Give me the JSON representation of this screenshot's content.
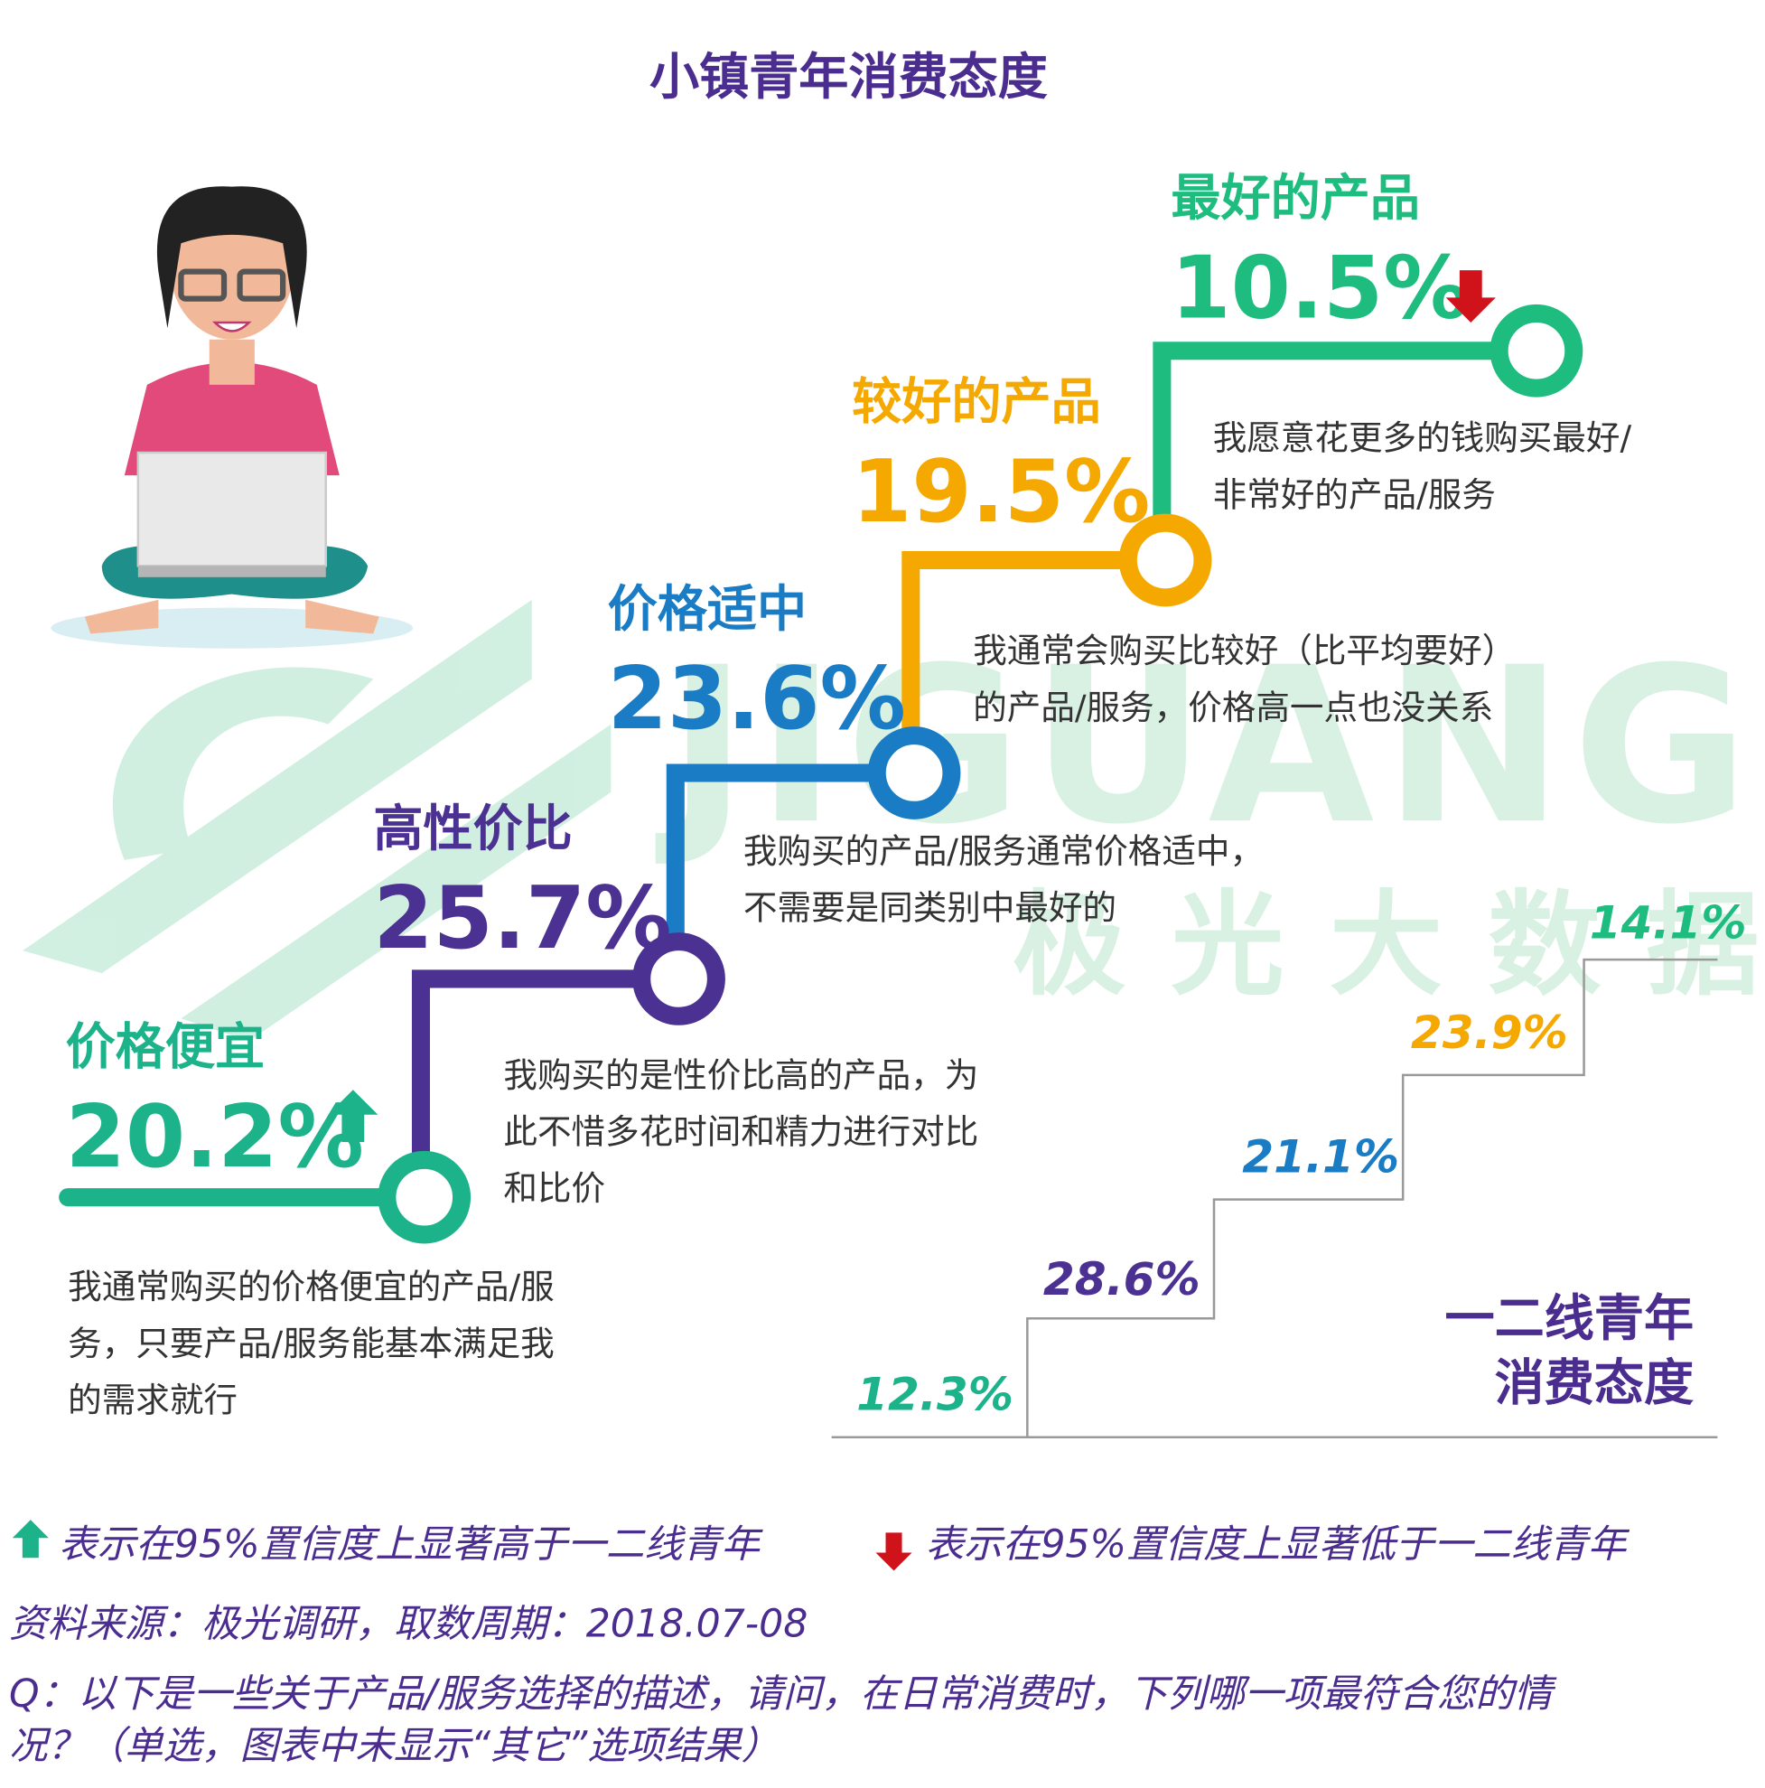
{
  "title": "小镇青年消费态度",
  "steps": [
    {
      "label": "价格便宜",
      "value": "20.2%",
      "description": [
        "我通常购买的价格便宜的产品/服",
        "务，只要产品/服务能基本满足我",
        "的需求就行"
      ]
    },
    {
      "label": "高性价比",
      "value": "25.7%",
      "description": [
        "我购买的是性价比高的产品，为",
        "此不惜多花时间和精力进行对比",
        "和比价"
      ]
    },
    {
      "label": "价格适中",
      "value": "23.6%",
      "description": [
        "我购买的产品/服务通常价格适中，",
        "不需要是同类别中最好的"
      ]
    },
    {
      "label": "较好的产品",
      "value": "19.5%",
      "description": [
        "我通常会购买比较好（比平均要好）",
        "的产品/服务，价格高一点也没关系"
      ]
    },
    {
      "label": "最好的产品",
      "value": "10.5%",
      "description": [
        "我愿意花更多的钱购买最好/",
        "非常好的产品/服务"
      ]
    }
  ],
  "tier12": {
    "label": [
      "一二线青年",
      "消费态度"
    ],
    "values": [
      "12.3%",
      "28.6%",
      "21.1%",
      "23.9%",
      "14.1%"
    ]
  },
  "legend": {
    "up": "表示在95%置信度上显著高于一二线青年",
    "down": "表示在95%置信度上显著低于一二线青年"
  },
  "source": "资料来源：极光调研，取数周期：2018.07-08",
  "question": [
    "Q：以下是一些关于产品/服务选择的描述，请问，在日常消费时，下列哪一项最符合您的情",
    "况？（单选，图表中未显示“其它”选项结果）"
  ],
  "watermark": [
    "JIGUANG",
    "极光大数据"
  ]
}
